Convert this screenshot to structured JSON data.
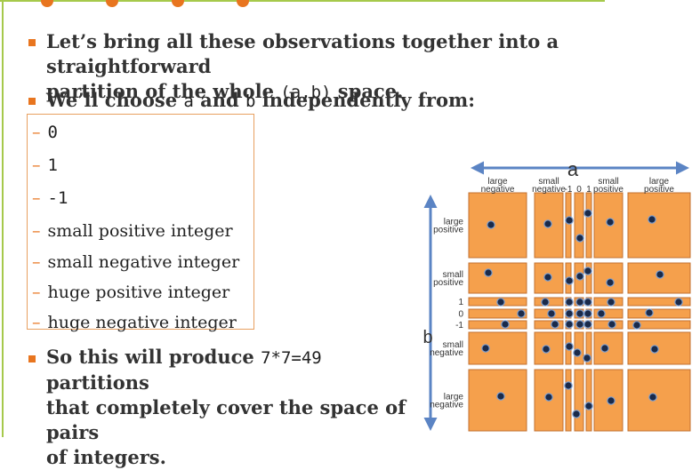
{
  "bullets": [
    {
      "pre": "Let’s bring all these observations together into a straightforward",
      "line2_pre": "partition of the whole ",
      "code": "(a,b)",
      "post": " space."
    },
    {
      "pre": "We’ll choose ",
      "code1": "a",
      "mid": " and ",
      "code2": "b",
      "post": " independently from:"
    },
    {
      "pre": "So this will produce ",
      "code": "7*7=49",
      "post": " partitions",
      "line2": "that completely cover the space of pairs",
      "line3": "of integers."
    }
  ],
  "list_items": [
    {
      "text": "0",
      "mono": true
    },
    {
      "text": "1",
      "mono": true
    },
    {
      "text": "-1",
      "mono": true
    },
    {
      "text": "small positive integer",
      "mono": false
    },
    {
      "text": "small negative integer",
      "mono": false
    },
    {
      "text": "huge positive integer",
      "mono": false
    },
    {
      "text": "huge negative integer",
      "mono": false
    }
  ],
  "diagram": {
    "axis_a": "a",
    "axis_b": "b",
    "columns": [
      "large negative",
      "small negative",
      "-1",
      "0",
      "1",
      "small positive",
      "large positive"
    ],
    "column_lines": [
      [
        "large",
        "negative"
      ],
      [
        "small",
        "negative"
      ],
      [
        "-1"
      ],
      [
        "0"
      ],
      [
        "1"
      ],
      [
        "small",
        "positive"
      ],
      [
        "large",
        "positive"
      ]
    ],
    "row_lines": [
      [
        "large",
        "positive"
      ],
      [
        "small",
        "positive"
      ],
      [
        "1"
      ],
      [
        "0"
      ],
      [
        "-1"
      ],
      [
        "small",
        "negative"
      ],
      [
        "large",
        "negative"
      ]
    ],
    "colors": {
      "cell": "#f5a04c",
      "cell_stroke": "#c27030",
      "arrow": "#5b84c4",
      "dot": "#1a2a4a"
    }
  }
}
